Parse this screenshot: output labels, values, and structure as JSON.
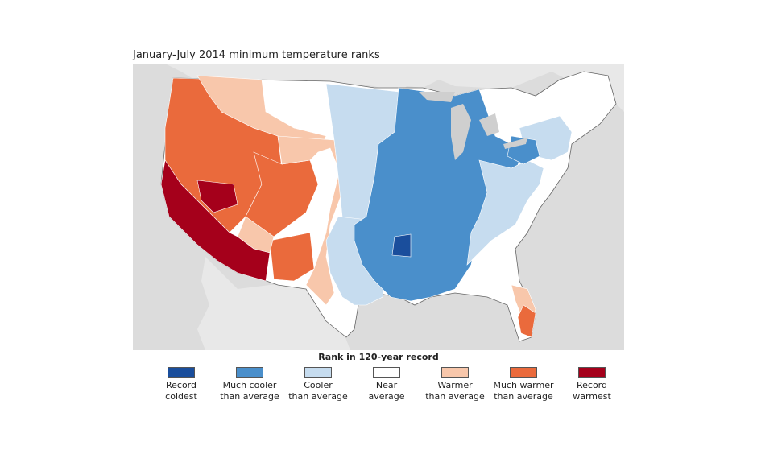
{
  "title": "January-July 2014 minimum temperature ranks",
  "legend": {
    "title": "Rank in 120-year record",
    "items": [
      {
        "label": "Record\ncoldest",
        "color": "#1a4e9c"
      },
      {
        "label": "Much cooler\nthan average",
        "color": "#4a8fcb"
      },
      {
        "label": "Cooler\nthan average",
        "color": "#c6dcef"
      },
      {
        "label": "Near\naverage",
        "color": "#ffffff"
      },
      {
        "label": "Warmer\nthan average",
        "color": "#f8c7ab"
      },
      {
        "label": "Much warmer\nthan average",
        "color": "#ea6a3c"
      },
      {
        "label": "Record\nwarmest",
        "color": "#a5001b"
      }
    ]
  },
  "map_colors": {
    "land_us": "#ffffff",
    "land_other": "#e6e6e6",
    "water": "#cfcfcf",
    "borders": "#666666"
  }
}
